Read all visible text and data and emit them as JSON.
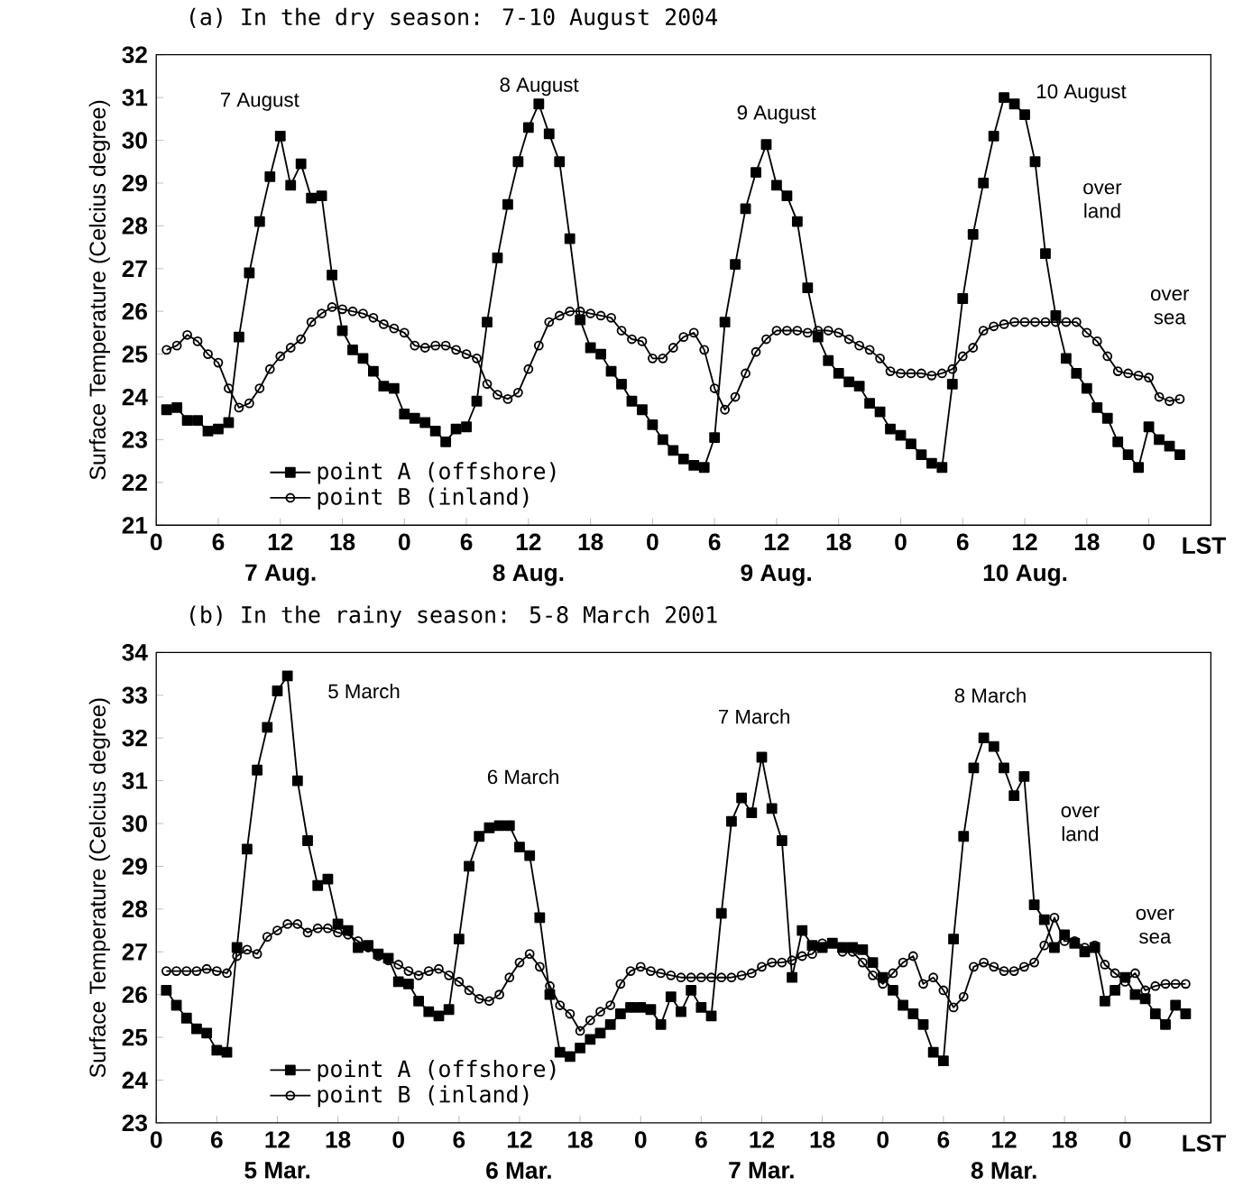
{
  "chart_data": [
    {
      "type": "line",
      "title": "(a) In the dry season: 7-10 August 2004",
      "ylabel": "Surface Temperature (Celcius degree)",
      "xlabel": "LST",
      "xlim": [
        "2004-08-07T00:00",
        "2004-08-11T06:00"
      ],
      "ylim": [
        21,
        32
      ],
      "xticks": [
        {
          "value": "2004-08-07T00:00",
          "label": "0"
        },
        {
          "value": "2004-08-07T06:00",
          "label": "6"
        },
        {
          "value": "2004-08-07T12:00",
          "label": "12"
        },
        {
          "value": "2004-08-07T18:00",
          "label": "18"
        },
        {
          "value": "2004-08-08T00:00",
          "label": "0"
        },
        {
          "value": "2004-08-08T06:00",
          "label": "6"
        },
        {
          "value": "2004-08-08T12:00",
          "label": "12"
        },
        {
          "value": "2004-08-08T18:00",
          "label": "18"
        },
        {
          "value": "2004-08-09T00:00",
          "label": "0"
        },
        {
          "value": "2004-08-09T06:00",
          "label": "6"
        },
        {
          "value": "2004-08-09T12:00",
          "label": "12"
        },
        {
          "value": "2004-08-09T18:00",
          "label": "18"
        },
        {
          "value": "2004-08-10T00:00",
          "label": "0"
        },
        {
          "value": "2004-08-10T06:00",
          "label": "6"
        },
        {
          "value": "2004-08-10T12:00",
          "label": "12"
        },
        {
          "value": "2004-08-10T18:00",
          "label": "18"
        },
        {
          "value": "2004-08-11T00:00",
          "label": "0"
        }
      ],
      "yticks": [
        21,
        22,
        23,
        24,
        25,
        26,
        27,
        28,
        29,
        30,
        31,
        32
      ],
      "legend": "bottom left",
      "x": [
        "2004-08-07T01:00",
        "2004-08-07T02:00",
        "2004-08-07T03:00",
        "2004-08-07T04:00",
        "2004-08-07T05:00",
        "2004-08-07T06:00",
        "2004-08-07T07:00",
        "2004-08-07T08:00",
        "2004-08-07T09:00",
        "2004-08-07T10:00",
        "2004-08-07T11:00",
        "2004-08-07T12:00",
        "2004-08-07T13:00",
        "2004-08-07T14:00",
        "2004-08-07T15:00",
        "2004-08-07T16:00",
        "2004-08-07T17:00",
        "2004-08-07T18:00",
        "2004-08-07T19:00",
        "2004-08-07T20:00",
        "2004-08-07T21:00",
        "2004-08-07T22:00",
        "2004-08-07T23:00",
        "2004-08-08T00:00",
        "2004-08-08T01:00",
        "2004-08-08T02:00",
        "2004-08-08T03:00",
        "2004-08-08T04:00",
        "2004-08-08T05:00",
        "2004-08-08T06:00",
        "2004-08-08T07:00",
        "2004-08-08T08:00",
        "2004-08-08T09:00",
        "2004-08-08T10:00",
        "2004-08-08T11:00",
        "2004-08-08T12:00",
        "2004-08-08T13:00",
        "2004-08-08T14:00",
        "2004-08-08T15:00",
        "2004-08-08T16:00",
        "2004-08-08T17:00",
        "2004-08-08T18:00",
        "2004-08-08T19:00",
        "2004-08-08T20:00",
        "2004-08-08T21:00",
        "2004-08-08T22:00",
        "2004-08-08T23:00",
        "2004-08-09T00:00",
        "2004-08-09T01:00",
        "2004-08-09T02:00",
        "2004-08-09T03:00",
        "2004-08-09T04:00",
        "2004-08-09T05:00",
        "2004-08-09T06:00",
        "2004-08-09T07:00",
        "2004-08-09T08:00",
        "2004-08-09T09:00",
        "2004-08-09T10:00",
        "2004-08-09T11:00",
        "2004-08-09T12:00",
        "2004-08-09T13:00",
        "2004-08-09T14:00",
        "2004-08-09T15:00",
        "2004-08-09T16:00",
        "2004-08-09T17:00",
        "2004-08-09T18:00",
        "2004-08-09T19:00",
        "2004-08-09T20:00",
        "2004-08-09T21:00",
        "2004-08-09T22:00",
        "2004-08-09T23:00",
        "2004-08-10T00:00",
        "2004-08-10T01:00",
        "2004-08-10T02:00",
        "2004-08-10T03:00",
        "2004-08-10T04:00",
        "2004-08-10T05:00",
        "2004-08-10T06:00",
        "2004-08-10T07:00",
        "2004-08-10T08:00",
        "2004-08-10T09:00",
        "2004-08-10T10:00",
        "2004-08-10T11:00",
        "2004-08-10T12:00",
        "2004-08-10T13:00",
        "2004-08-10T14:00",
        "2004-08-10T15:00",
        "2004-08-10T16:00",
        "2004-08-10T17:00",
        "2004-08-10T18:00",
        "2004-08-10T19:00",
        "2004-08-10T20:00",
        "2004-08-10T21:00",
        "2004-08-10T22:00",
        "2004-08-10T23:00",
        "2004-08-11T00:00",
        "2004-08-11T01:00",
        "2004-08-11T02:00",
        "2004-08-11T03:00"
      ],
      "series": [
        {
          "name": "point A (offshore)",
          "color": "#000000",
          "marker": "square",
          "values": [
            23.7,
            23.75,
            23.45,
            23.45,
            23.2,
            23.25,
            23.4,
            25.4,
            26.9,
            28.1,
            29.15,
            30.1,
            28.95,
            29.45,
            28.65,
            28.7,
            26.85,
            25.55,
            25.1,
            24.9,
            24.6,
            24.25,
            24.2,
            23.6,
            23.5,
            23.4,
            23.2,
            22.95,
            23.25,
            23.3,
            23.9,
            25.75,
            27.25,
            28.5,
            29.5,
            30.3,
            30.85,
            30.15,
            29.5,
            27.7,
            25.8,
            25.15,
            25.0,
            24.6,
            24.3,
            23.9,
            23.7,
            23.35,
            23.0,
            22.75,
            22.55,
            22.4,
            22.35,
            23.05,
            25.75,
            27.1,
            28.4,
            29.25,
            29.9,
            28.95,
            28.7,
            28.1,
            26.55,
            25.4,
            24.85,
            24.55,
            24.35,
            24.25,
            23.85,
            23.65,
            23.25,
            23.1,
            22.9,
            22.65,
            22.45,
            22.35,
            24.3,
            26.3,
            27.8,
            29.0,
            30.1,
            31.0,
            30.85,
            30.6,
            29.5,
            27.35,
            25.9,
            24.9,
            24.55,
            24.2,
            23.75,
            23.5,
            22.95,
            22.65,
            22.35,
            23.3,
            23.0,
            22.85,
            22.65
          ]
        },
        {
          "name": "point B (inland)",
          "color": "#000000",
          "marker": "circle",
          "values": [
            25.1,
            25.2,
            25.45,
            25.3,
            25.0,
            24.8,
            24.2,
            23.75,
            23.85,
            24.2,
            24.65,
            24.95,
            25.15,
            25.35,
            25.75,
            25.95,
            26.1,
            26.05,
            26.0,
            25.95,
            25.85,
            25.7,
            25.6,
            25.5,
            25.2,
            25.15,
            25.2,
            25.2,
            25.1,
            25.0,
            24.9,
            24.3,
            24.05,
            23.95,
            24.1,
            24.65,
            25.2,
            25.75,
            25.9,
            26.0,
            26.0,
            25.95,
            25.9,
            25.85,
            25.55,
            25.35,
            25.3,
            24.9,
            24.9,
            25.15,
            25.4,
            25.5,
            25.1,
            24.2,
            23.7,
            24.0,
            24.55,
            25.05,
            25.35,
            25.55,
            25.55,
            25.55,
            25.5,
            25.55,
            25.55,
            25.5,
            25.35,
            25.2,
            25.1,
            24.9,
            24.6,
            24.55,
            24.55,
            24.55,
            24.5,
            24.55,
            24.65,
            24.95,
            25.15,
            25.55,
            25.65,
            25.7,
            25.75,
            25.75,
            25.75,
            25.75,
            25.75,
            25.75,
            25.75,
            25.5,
            25.3,
            24.95,
            24.6,
            24.55,
            24.5,
            24.45,
            24.0,
            23.9,
            23.95
          ]
        }
      ],
      "annotations": [
        "7 August",
        "8 August",
        "9 August",
        "10 August",
        "over land",
        "over sea",
        "7 Aug.",
        "8 Aug.",
        "9 Aug.",
        "10 Aug."
      ]
    },
    {
      "type": "line",
      "title": "(b) In the rainy season: 5-8 March 2001",
      "ylabel": "Surface Temperature (Celcius degree)",
      "xlabel": "LST",
      "xlim": [
        "2001-03-05T00:00",
        "2001-03-09T08:30"
      ],
      "ylim": [
        23,
        34
      ],
      "xticks": [
        {
          "value": "2001-03-05T00:00",
          "label": "0"
        },
        {
          "value": "2001-03-05T06:00",
          "label": "6"
        },
        {
          "value": "2001-03-05T12:00",
          "label": "12"
        },
        {
          "value": "2001-03-05T18:00",
          "label": "18"
        },
        {
          "value": "2001-03-06T00:00",
          "label": "0"
        },
        {
          "value": "2001-03-06T06:00",
          "label": "6"
        },
        {
          "value": "2001-03-06T12:00",
          "label": "12"
        },
        {
          "value": "2001-03-06T18:00",
          "label": "18"
        },
        {
          "value": "2001-03-07T00:00",
          "label": "0"
        },
        {
          "value": "2001-03-07T06:00",
          "label": "6"
        },
        {
          "value": "2001-03-07T12:00",
          "label": "12"
        },
        {
          "value": "2001-03-07T18:00",
          "label": "18"
        },
        {
          "value": "2001-03-08T00:00",
          "label": "0"
        },
        {
          "value": "2001-03-08T06:00",
          "label": "6"
        },
        {
          "value": "2001-03-08T12:00",
          "label": "12"
        },
        {
          "value": "2001-03-08T18:00",
          "label": "18"
        },
        {
          "value": "2001-03-09T00:00",
          "label": "0"
        }
      ],
      "yticks": [
        23,
        24,
        25,
        26,
        27,
        28,
        29,
        30,
        31,
        32,
        33,
        34
      ],
      "legend": "bottom left",
      "x": [
        "2001-03-05T01:00",
        "2001-03-05T02:00",
        "2001-03-05T03:00",
        "2001-03-05T04:00",
        "2001-03-05T05:00",
        "2001-03-05T06:00",
        "2001-03-05T07:00",
        "2001-03-05T08:00",
        "2001-03-05T09:00",
        "2001-03-05T10:00",
        "2001-03-05T11:00",
        "2001-03-05T12:00",
        "2001-03-05T13:00",
        "2001-03-05T14:00",
        "2001-03-05T15:00",
        "2001-03-05T16:00",
        "2001-03-05T17:00",
        "2001-03-05T18:00",
        "2001-03-05T19:00",
        "2001-03-05T20:00",
        "2001-03-05T21:00",
        "2001-03-05T22:00",
        "2001-03-05T23:00",
        "2001-03-06T00:00",
        "2001-03-06T01:00",
        "2001-03-06T02:00",
        "2001-03-06T03:00",
        "2001-03-06T04:00",
        "2001-03-06T05:00",
        "2001-03-06T06:00",
        "2001-03-06T07:00",
        "2001-03-06T08:00",
        "2001-03-06T09:00",
        "2001-03-06T10:00",
        "2001-03-06T11:00",
        "2001-03-06T12:00",
        "2001-03-06T13:00",
        "2001-03-06T14:00",
        "2001-03-06T15:00",
        "2001-03-06T16:00",
        "2001-03-06T17:00",
        "2001-03-06T18:00",
        "2001-03-06T19:00",
        "2001-03-06T20:00",
        "2001-03-06T21:00",
        "2001-03-06T22:00",
        "2001-03-06T23:00",
        "2001-03-07T00:00",
        "2001-03-07T01:00",
        "2001-03-07T02:00",
        "2001-03-07T03:00",
        "2001-03-07T04:00",
        "2001-03-07T05:00",
        "2001-03-07T06:00",
        "2001-03-07T07:00",
        "2001-03-07T08:00",
        "2001-03-07T09:00",
        "2001-03-07T10:00",
        "2001-03-07T11:00",
        "2001-03-07T12:00",
        "2001-03-07T13:00",
        "2001-03-07T14:00",
        "2001-03-07T15:00",
        "2001-03-07T16:00",
        "2001-03-07T17:00",
        "2001-03-07T18:00",
        "2001-03-07T19:00",
        "2001-03-07T20:00",
        "2001-03-07T21:00",
        "2001-03-07T22:00",
        "2001-03-07T23:00",
        "2001-03-08T00:00",
        "2001-03-08T01:00",
        "2001-03-08T02:00",
        "2001-03-08T03:00",
        "2001-03-08T04:00",
        "2001-03-08T05:00",
        "2001-03-08T06:00",
        "2001-03-08T07:00",
        "2001-03-08T08:00",
        "2001-03-08T09:00",
        "2001-03-08T10:00",
        "2001-03-08T11:00",
        "2001-03-08T12:00",
        "2001-03-08T13:00",
        "2001-03-08T14:00",
        "2001-03-08T15:00",
        "2001-03-08T16:00",
        "2001-03-08T17:00",
        "2001-03-08T18:00",
        "2001-03-08T19:00",
        "2001-03-08T20:00",
        "2001-03-08T21:00",
        "2001-03-08T22:00",
        "2001-03-08T23:00",
        "2001-03-09T00:00",
        "2001-03-09T01:00",
        "2001-03-09T02:00",
        "2001-03-09T03:00",
        "2001-03-09T04:00",
        "2001-03-09T05:00",
        "2001-03-09T06:00"
      ],
      "series": [
        {
          "name": "point A (offshore)",
          "color": "#000000",
          "marker": "square",
          "values": [
            26.1,
            25.75,
            25.45,
            25.2,
            25.1,
            24.7,
            24.65,
            27.1,
            29.4,
            31.25,
            32.25,
            33.1,
            33.45,
            31.0,
            29.6,
            28.55,
            28.7,
            27.65,
            27.5,
            27.1,
            27.15,
            26.95,
            26.85,
            26.3,
            26.25,
            25.85,
            25.6,
            25.5,
            25.65,
            27.3,
            29.0,
            29.7,
            29.9,
            29.95,
            29.95,
            29.45,
            29.25,
            27.8,
            26.0,
            24.65,
            24.55,
            24.75,
            24.95,
            25.1,
            25.3,
            25.55,
            25.7,
            25.7,
            25.65,
            25.3,
            25.95,
            25.6,
            26.1,
            25.7,
            25.5,
            27.9,
            30.05,
            30.6,
            30.25,
            31.55,
            30.35,
            29.6,
            26.4,
            27.5,
            27.15,
            27.1,
            27.2,
            27.1,
            27.1,
            27.05,
            26.75,
            26.4,
            26.1,
            25.75,
            25.55,
            25.3,
            24.65,
            24.45,
            27.3,
            29.7,
            31.3,
            32.0,
            31.8,
            31.3,
            30.65,
            31.1,
            28.1,
            27.75,
            27.1,
            27.4,
            27.2,
            27.0,
            27.1,
            25.85,
            26.1,
            26.4,
            26.0,
            25.9,
            25.55,
            25.3,
            25.75,
            25.55
          ]
        },
        {
          "name": "point B (inland)",
          "color": "#000000",
          "marker": "circle",
          "values": [
            26.55,
            26.55,
            26.55,
            26.55,
            26.6,
            26.55,
            26.5,
            26.9,
            27.05,
            26.95,
            27.35,
            27.5,
            27.65,
            27.65,
            27.45,
            27.55,
            27.55,
            27.45,
            27.4,
            27.25,
            27.1,
            26.9,
            26.8,
            26.7,
            26.55,
            26.45,
            26.55,
            26.6,
            26.45,
            26.3,
            26.1,
            25.9,
            25.85,
            26.0,
            26.4,
            26.75,
            26.95,
            26.65,
            26.2,
            25.75,
            25.55,
            25.15,
            25.4,
            25.6,
            25.75,
            26.25,
            26.55,
            26.65,
            26.55,
            26.5,
            26.45,
            26.4,
            26.4,
            26.4,
            26.4,
            26.4,
            26.4,
            26.45,
            26.5,
            26.65,
            26.75,
            26.75,
            26.8,
            26.9,
            26.95,
            27.2,
            27.2,
            27.0,
            27.0,
            26.75,
            26.45,
            26.25,
            26.5,
            26.75,
            26.9,
            26.25,
            26.4,
            26.1,
            25.7,
            25.95,
            26.65,
            26.75,
            26.65,
            26.55,
            26.55,
            26.65,
            26.75,
            27.15,
            27.8,
            27.25,
            27.25,
            27.1,
            27.15,
            26.7,
            26.5,
            26.3,
            26.5,
            26.1,
            26.2,
            26.25,
            26.25,
            26.25
          ]
        }
      ],
      "annotations": [
        "5 March",
        "6 March",
        "7 March",
        "8 March",
        "over land",
        "over sea",
        "5 Mar.",
        "6 Mar.",
        "7 Mar.",
        "8 Mar."
      ]
    }
  ]
}
